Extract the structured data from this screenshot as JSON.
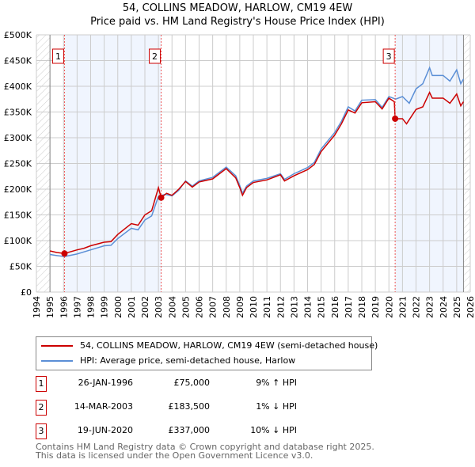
{
  "chart_data": {
    "type": "line",
    "title": "54, COLLINS MEADOW, HARLOW, CM19 4EW",
    "subtitle": "Price paid vs. HM Land Registry's House Price Index (HPI)",
    "xlim": [
      1994,
      2026
    ],
    "ylim": [
      0,
      500000
    ],
    "x_ticks": [
      "1994",
      "1995",
      "1996",
      "1997",
      "1998",
      "1999",
      "2000",
      "2001",
      "2002",
      "2003",
      "2004",
      "2005",
      "2006",
      "2007",
      "2008",
      "2009",
      "2010",
      "2011",
      "2012",
      "2013",
      "2014",
      "2015",
      "2016",
      "2017",
      "2018",
      "2019",
      "2020",
      "2021",
      "2022",
      "2023",
      "2024",
      "2025",
      "2026"
    ],
    "y_ticks": [
      "£0",
      "£50K",
      "£100K",
      "£150K",
      "£200K",
      "£250K",
      "£300K",
      "£350K",
      "£400K",
      "£450K",
      "£500K"
    ],
    "grid": true,
    "series": [
      {
        "name": "54, COLLINS MEADOW, HARLOW, CM19 4EW (semi-detached house)",
        "color": "#cc0000",
        "points": [
          [
            1995,
            80000
          ],
          [
            1995.5,
            77000
          ],
          [
            1996.07,
            75000
          ],
          [
            1997,
            82000
          ],
          [
            1997.5,
            85000
          ],
          [
            1998,
            90000
          ],
          [
            1999,
            97000
          ],
          [
            1999.5,
            98000
          ],
          [
            2000,
            112000
          ],
          [
            2001,
            133000
          ],
          [
            2001.5,
            130000
          ],
          [
            2002,
            150000
          ],
          [
            2002.5,
            158000
          ],
          [
            2003,
            203000
          ],
          [
            2003.2,
            183500
          ],
          [
            2003.6,
            192000
          ],
          [
            2004,
            188000
          ],
          [
            2004.5,
            200000
          ],
          [
            2005,
            215000
          ],
          [
            2005.5,
            204000
          ],
          [
            2006,
            214000
          ],
          [
            2007,
            220000
          ],
          [
            2008,
            240000
          ],
          [
            2008.7,
            222000
          ],
          [
            2009,
            203000
          ],
          [
            2009.2,
            188000
          ],
          [
            2009.5,
            203000
          ],
          [
            2010,
            213000
          ],
          [
            2011,
            218000
          ],
          [
            2012,
            228000
          ],
          [
            2012.3,
            216000
          ],
          [
            2013,
            226000
          ],
          [
            2014,
            238000
          ],
          [
            2014.5,
            248000
          ],
          [
            2015,
            273000
          ],
          [
            2016,
            305000
          ],
          [
            2016.5,
            327000
          ],
          [
            2017,
            354000
          ],
          [
            2017.5,
            348000
          ],
          [
            2018,
            368000
          ],
          [
            2019,
            370000
          ],
          [
            2019.5,
            356000
          ],
          [
            2020,
            377000
          ],
          [
            2020.4,
            370000
          ],
          [
            2020.46,
            337000
          ],
          [
            2021,
            337000
          ],
          [
            2021.3,
            327000
          ],
          [
            2022,
            355000
          ],
          [
            2022.5,
            360000
          ],
          [
            2023,
            388000
          ],
          [
            2023.2,
            377000
          ],
          [
            2024,
            377000
          ],
          [
            2024.5,
            367000
          ],
          [
            2025,
            385000
          ],
          [
            2025.3,
            362000
          ],
          [
            2025.5,
            370000
          ]
        ]
      },
      {
        "name": "HPI: Average price, semi-detached house, Harlow",
        "color": "#5b8fd6",
        "points": [
          [
            1995,
            73000
          ],
          [
            1995.5,
            71000
          ],
          [
            1996.07,
            69000
          ],
          [
            1997,
            74000
          ],
          [
            1998,
            82000
          ],
          [
            1999,
            90000
          ],
          [
            1999.5,
            91000
          ],
          [
            2000,
            104000
          ],
          [
            2001,
            124000
          ],
          [
            2001.5,
            121000
          ],
          [
            2002,
            140000
          ],
          [
            2002.5,
            148000
          ],
          [
            2003,
            186000
          ],
          [
            2003.5,
            190000
          ],
          [
            2004,
            187000
          ],
          [
            2004.5,
            198000
          ],
          [
            2005,
            216000
          ],
          [
            2005.5,
            206000
          ],
          [
            2006,
            216000
          ],
          [
            2007,
            223000
          ],
          [
            2008,
            243000
          ],
          [
            2008.7,
            226000
          ],
          [
            2009,
            207000
          ],
          [
            2009.2,
            192000
          ],
          [
            2009.5,
            206000
          ],
          [
            2010,
            216000
          ],
          [
            2011,
            221000
          ],
          [
            2012,
            230000
          ],
          [
            2012.3,
            219000
          ],
          [
            2013,
            230000
          ],
          [
            2014,
            242000
          ],
          [
            2014.5,
            252000
          ],
          [
            2015,
            278000
          ],
          [
            2016,
            310000
          ],
          [
            2016.5,
            332000
          ],
          [
            2017,
            360000
          ],
          [
            2017.5,
            352000
          ],
          [
            2018,
            373000
          ],
          [
            2019,
            374000
          ],
          [
            2019.5,
            359000
          ],
          [
            2020,
            380000
          ],
          [
            2020.5,
            375000
          ],
          [
            2021,
            380000
          ],
          [
            2021.5,
            367000
          ],
          [
            2022,
            395000
          ],
          [
            2022.5,
            405000
          ],
          [
            2023,
            436000
          ],
          [
            2023.2,
            421000
          ],
          [
            2024,
            421000
          ],
          [
            2024.5,
            410000
          ],
          [
            2025,
            432000
          ],
          [
            2025.3,
            405000
          ],
          [
            2025.5,
            414000
          ]
        ]
      }
    ],
    "sales": [
      {
        "label": "1",
        "x": 2003.2,
        "xdate": 1996.07,
        "value": 75000
      },
      {
        "label": "2",
        "xdate": 2003.2,
        "value": 183500
      },
      {
        "label": "3",
        "xdate": 2020.46,
        "value": 337000
      }
    ],
    "shaded_ranges": [
      [
        1996.07,
        2003.2
      ],
      [
        2020.46,
        2025.5
      ]
    ],
    "hatched_ranges": [
      [
        1994,
        1995
      ],
      [
        2025.5,
        2026
      ]
    ]
  },
  "legend": {
    "property": "54, COLLINS MEADOW, HARLOW, CM19 4EW (semi-detached house)",
    "hpi": "HPI: Average price, semi-detached house, Harlow"
  },
  "transactions": [
    {
      "n": "1",
      "date": "26-JAN-1996",
      "price": "£75,000",
      "hpi": "9% ↑ HPI"
    },
    {
      "n": "2",
      "date": "14-MAR-2003",
      "price": "£183,500",
      "hpi": "1% ↓ HPI"
    },
    {
      "n": "3",
      "date": "19-JUN-2020",
      "price": "£337,000",
      "hpi": "10% ↓ HPI"
    }
  ],
  "footer": {
    "line1": "Contains HM Land Registry data © Crown copyright and database right 2025.",
    "line2": "This data is licensed under the Open Government Licence v3.0."
  }
}
